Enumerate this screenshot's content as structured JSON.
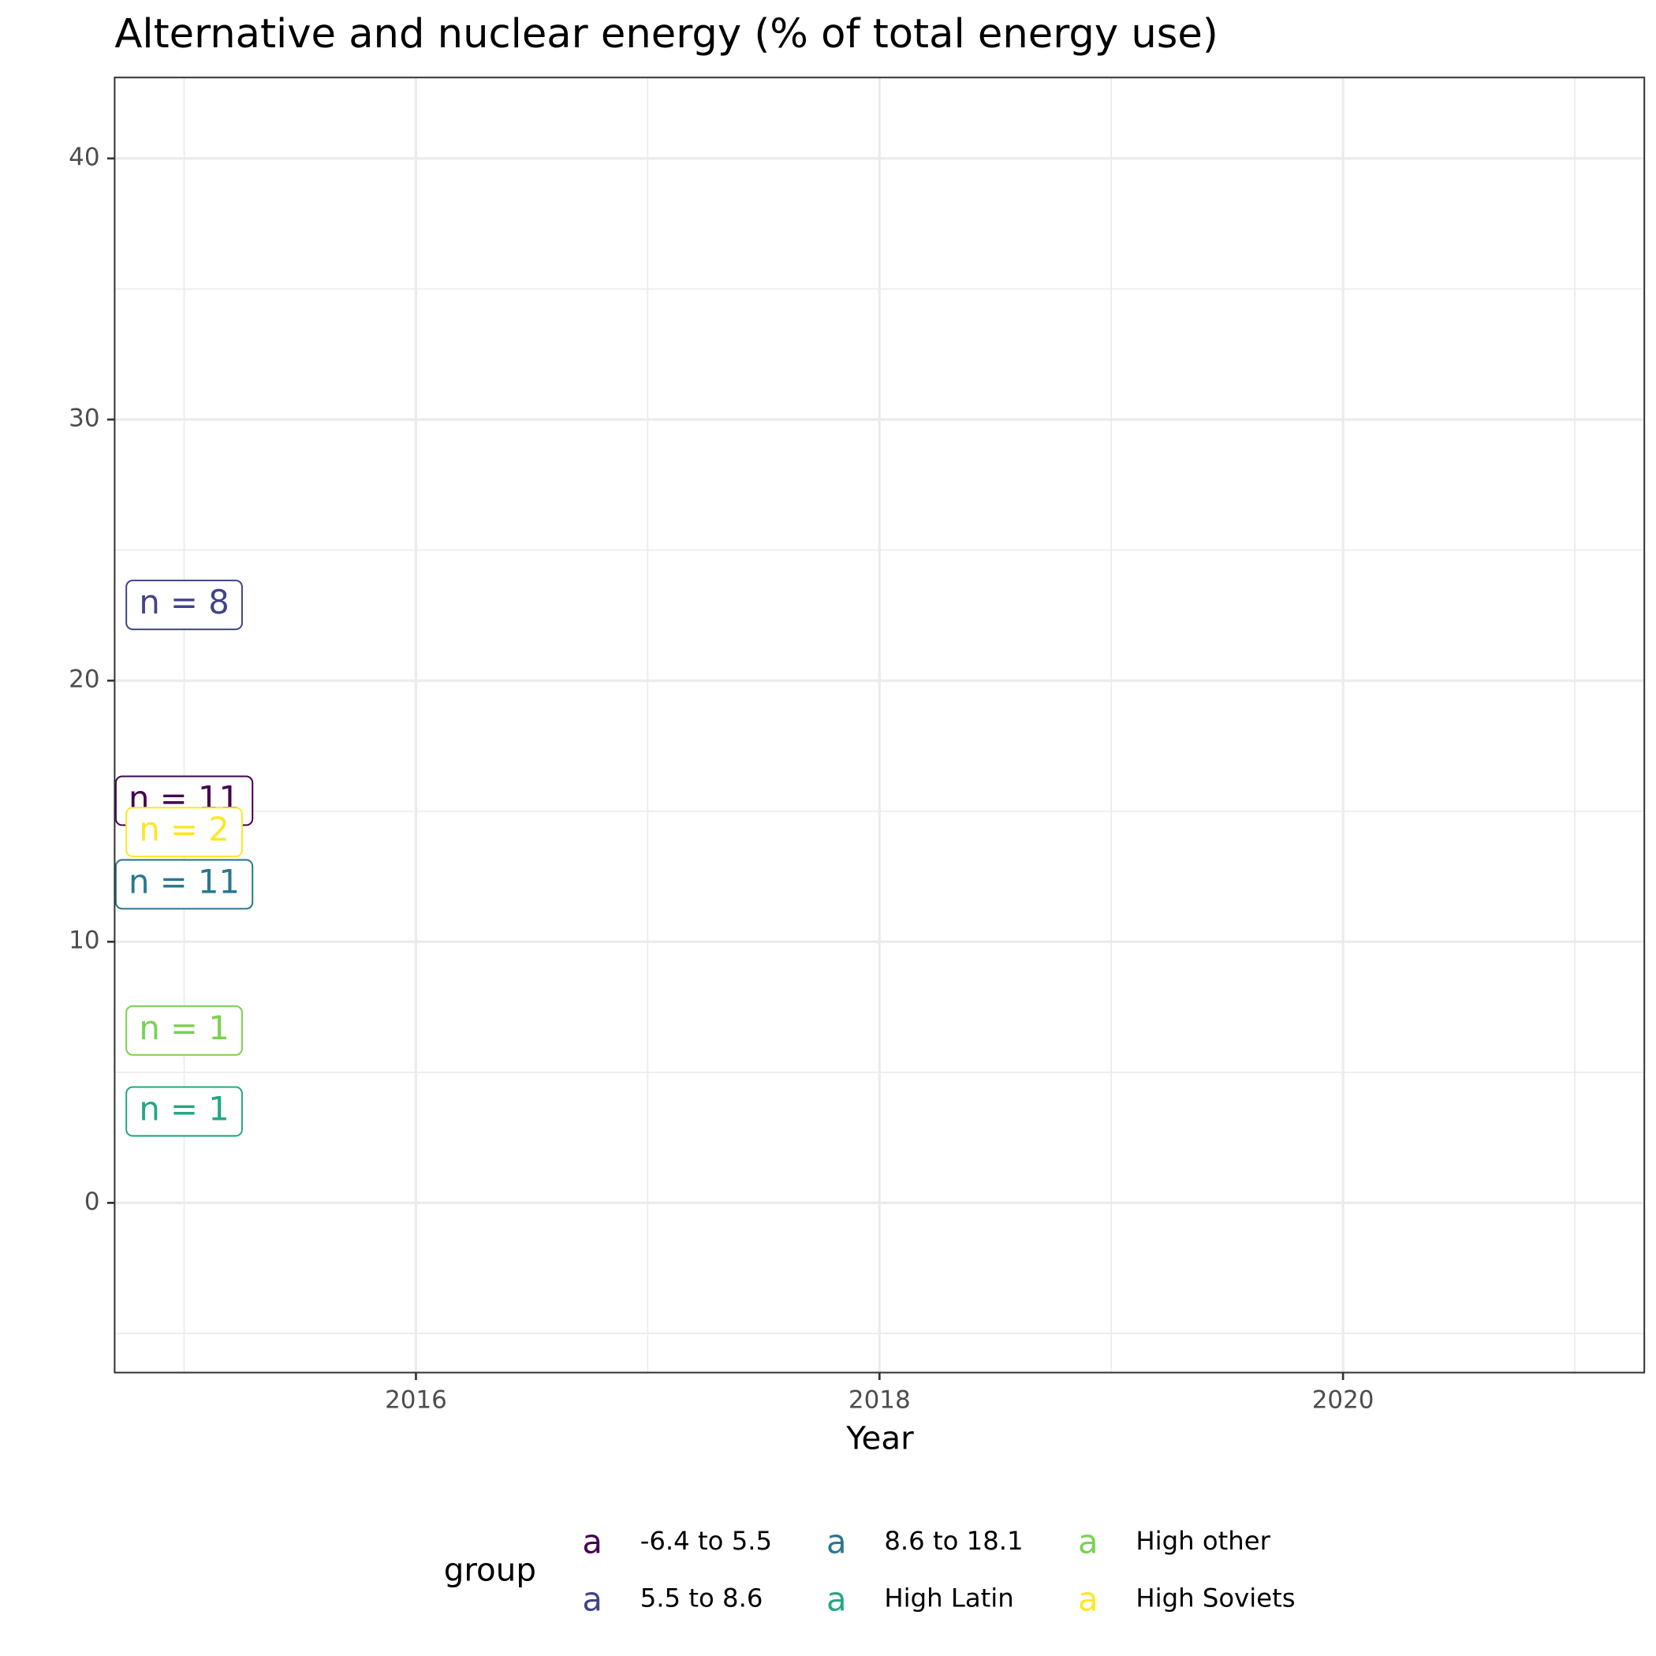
{
  "chart_data": {
    "type": "label",
    "title": "Alternative and nuclear energy (% of total energy use)",
    "x_label": "Year",
    "legend_title": "group",
    "legend_key": "a",
    "legend_position": "bottom",
    "grid": true,
    "xlim": [
      2014.7,
      2021.3
    ],
    "xticks": [
      2016,
      2018,
      2020
    ],
    "ylim": [
      -6.5,
      43.1
    ],
    "yticks": [
      0,
      10,
      20,
      30,
      40
    ],
    "series": [
      {
        "name": "-6.4 to 5.5",
        "color": "#440154",
        "x": [
          2015
        ],
        "values": [
          15.4
        ],
        "value_labels": [
          "n = 11"
        ]
      },
      {
        "name": "5.5 to 8.6",
        "color": "#414487",
        "x": [
          2015
        ],
        "values": [
          22.9
        ],
        "value_labels": [
          "n = 8"
        ]
      },
      {
        "name": "8.6 to 18.1",
        "color": "#2A788E",
        "x": [
          2015
        ],
        "values": [
          12.2
        ],
        "value_labels": [
          "n = 11"
        ]
      },
      {
        "name": "High Latin",
        "color": "#22A884",
        "x": [
          2015
        ],
        "values": [
          3.5
        ],
        "value_labels": [
          "n = 1"
        ]
      },
      {
        "name": "High other",
        "color": "#7AD151",
        "x": [
          2015
        ],
        "values": [
          6.6
        ],
        "value_labels": [
          "n = 1"
        ]
      },
      {
        "name": "High Soviets",
        "color": "#FDE725",
        "x": [
          2015
        ],
        "values": [
          14.2
        ],
        "value_labels": [
          "n = 2"
        ]
      }
    ]
  }
}
